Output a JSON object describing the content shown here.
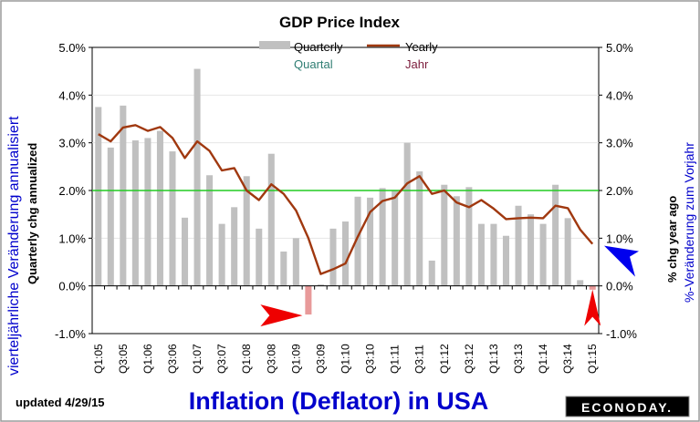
{
  "chart_data": {
    "type": "bar",
    "title": "GDP Price Index",
    "xlabel": "",
    "ylabel": "Quarterly chg annualized",
    "ylabel_right": "% chg year ago",
    "ylim": [
      -1.0,
      5.0
    ],
    "y_ticks": [
      "5.0%",
      "4.0%",
      "3.0%",
      "2.0%",
      "1.0%",
      "0.0%",
      "-1.0%"
    ],
    "y_tick_values": [
      5,
      4,
      3,
      2,
      1,
      0,
      -1
    ],
    "reference_line": 2.0,
    "categories": [
      "Q1:05",
      "Q2:05",
      "Q3:05",
      "Q4:05",
      "Q1:06",
      "Q2:06",
      "Q3:06",
      "Q4:06",
      "Q1:07",
      "Q2:07",
      "Q3:07",
      "Q4:07",
      "Q1:08",
      "Q2:08",
      "Q3:08",
      "Q4:08",
      "Q1:09",
      "Q2:09",
      "Q3:09",
      "Q4:09",
      "Q1:10",
      "Q2:10",
      "Q3:10",
      "Q4:10",
      "Q1:11",
      "Q2:11",
      "Q3:11",
      "Q4:11",
      "Q1:12",
      "Q2:12",
      "Q3:12",
      "Q4:12",
      "Q1:13",
      "Q2:13",
      "Q3:13",
      "Q4:13",
      "Q1:14",
      "Q2:14",
      "Q3:14",
      "Q4:14",
      "Q1:15"
    ],
    "x_tick_labels": [
      "Q1:05",
      "Q3:05",
      "Q1:06",
      "Q3:06",
      "Q1:07",
      "Q3:07",
      "Q1:08",
      "Q3:08",
      "Q1:09",
      "Q3:09",
      "Q1:10",
      "Q3:10",
      "Q1:11",
      "Q3:11",
      "Q1:12",
      "Q3:12",
      "Q1:13",
      "Q3:13",
      "Q1:14",
      "Q3:14",
      "Q1:15"
    ],
    "series": [
      {
        "name": "Quarterly",
        "type": "bar",
        "values": [
          3.75,
          2.9,
          3.78,
          3.05,
          3.1,
          3.25,
          2.82,
          1.43,
          4.55,
          2.32,
          1.3,
          1.65,
          2.3,
          1.2,
          2.77,
          0.72,
          1.0,
          -0.6,
          0.03,
          1.2,
          1.35,
          1.87,
          1.85,
          2.05,
          2.0,
          3.0,
          2.4,
          0.53,
          2.12,
          1.88,
          2.07,
          1.3,
          1.3,
          1.05,
          1.68,
          1.5,
          1.3,
          2.12,
          1.42,
          0.12,
          -0.08
        ]
      },
      {
        "name": "Yearly",
        "type": "line",
        "values": [
          3.18,
          3.03,
          3.32,
          3.37,
          3.25,
          3.33,
          3.1,
          2.68,
          3.03,
          2.83,
          2.42,
          2.47,
          2.0,
          1.8,
          2.13,
          1.93,
          1.58,
          1.0,
          0.25,
          0.35,
          0.47,
          1.03,
          1.55,
          1.78,
          1.85,
          2.15,
          2.3,
          1.93,
          2.0,
          1.75,
          1.65,
          1.8,
          1.62,
          1.4,
          1.42,
          1.43,
          1.42,
          1.68,
          1.63,
          1.18,
          0.88
        ]
      }
    ],
    "legend": "top-center",
    "colors": {
      "quarterly_bar": "#c0c0c0",
      "quarterly_bar_negative": "#e89a9a",
      "yearly_line": "#a0380f",
      "reference_line": "#22cc22",
      "arrow_red": "#ee0000",
      "arrow_blue": "#0000ee",
      "german_text": "#0000cc"
    }
  },
  "annotations": {
    "quarterly_de": "Quartal",
    "yearly_de": "Jahr",
    "left_axis_de": "vierteljährliche Veränderung annualisiert",
    "right_axis_de": "%-Veränderung zum Vorjahr",
    "updated": "updated 4/29/15",
    "footer_title": "Inflation (Deflator) in USA",
    "logo": "ECONODAY."
  }
}
